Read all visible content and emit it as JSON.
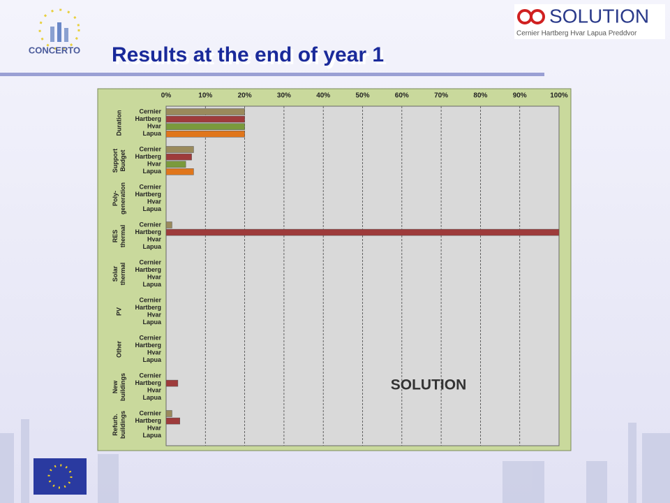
{
  "header": {
    "logo_left": "CONCERTO",
    "logo_right": "SOLUTION",
    "logo_right_sub": "Cernier Hartberg Hvar Lapua Preddvor"
  },
  "chart_data": {
    "type": "bar",
    "orientation": "horizontal",
    "title": "Results at the end of year 1",
    "annotation": "SOLUTION",
    "categories": [
      [
        "Duration"
      ],
      [
        "Support",
        "Budget"
      ],
      [
        "Poly-",
        "generation"
      ],
      [
        "RES",
        "thermal"
      ],
      [
        "Solar",
        "thermal"
      ],
      [
        "PV"
      ],
      [
        "Other"
      ],
      [
        "New",
        "buildings"
      ],
      [
        "Refurb.",
        "buildings"
      ]
    ],
    "series": [
      {
        "name": "Cernier",
        "color": "#9a8a5c",
        "values": [
          20,
          7,
          0,
          1.5,
          0,
          0,
          0,
          0,
          1.5
        ]
      },
      {
        "name": "Hartberg",
        "color": "#9e3b3b",
        "values": [
          20,
          6.5,
          0,
          100,
          0,
          0,
          0,
          3,
          3.5
        ]
      },
      {
        "name": "Hvar",
        "color": "#7a9a3c",
        "values": [
          20,
          5,
          0,
          0,
          0,
          0,
          0,
          0,
          0
        ]
      },
      {
        "name": "Lapua",
        "color": "#e0761c",
        "values": [
          20,
          7,
          0,
          0,
          0,
          0,
          0,
          0,
          0
        ]
      }
    ],
    "xlim": [
      0,
      100
    ],
    "xticks": [
      {
        "value": 0,
        "label": "0%"
      },
      {
        "value": 10,
        "label": "10%"
      },
      {
        "value": 20,
        "label": "20%"
      },
      {
        "value": 30,
        "label": "30%"
      },
      {
        "value": 40,
        "label": "40%"
      },
      {
        "value": 50,
        "label": "50%"
      },
      {
        "value": 60,
        "label": "60%"
      },
      {
        "value": 70,
        "label": "70%"
      },
      {
        "value": 80,
        "label": "80%"
      },
      {
        "value": 90,
        "label": "90%"
      },
      {
        "value": 100,
        "label": "100%"
      }
    ],
    "grid": true
  }
}
